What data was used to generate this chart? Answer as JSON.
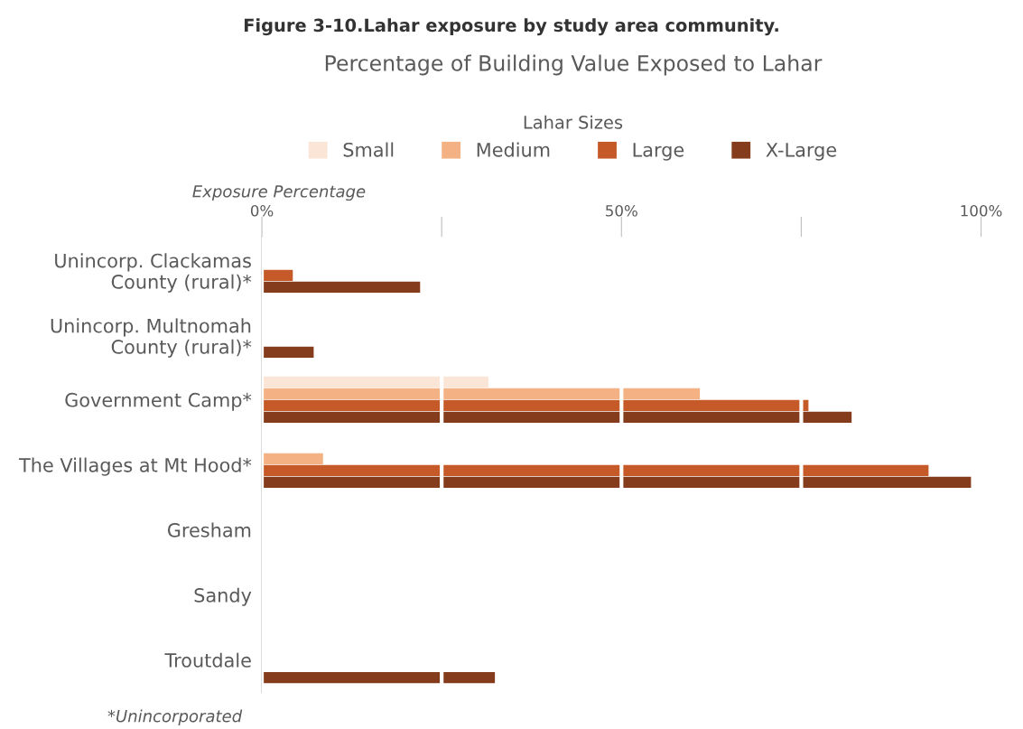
{
  "chart_data": {
    "type": "bar",
    "orientation": "horizontal",
    "title": "Figure 3-10.Lahar exposure by study area community.",
    "subtitle": "Percentage of Building Value Exposed to Lahar",
    "xlabel": "Exposure Percentage",
    "legend_title": "Lahar Sizes",
    "categories": [
      "Unincorp. Clackamas\nCounty (rural)*",
      "Unincorp. Multnomah\nCounty (rural)*",
      "Government Camp*",
      "The Villages at Mt Hood*",
      "Gresham",
      "Sandy",
      "Troutdale"
    ],
    "series": [
      {
        "name": "Small",
        "color": "#fbe5d6",
        "values": [
          0,
          0,
          31.5,
          0,
          0,
          0,
          0
        ]
      },
      {
        "name": "Medium",
        "color": "#f4b183",
        "values": [
          0,
          0,
          60.9,
          8.5,
          0,
          0,
          0
        ]
      },
      {
        "name": "Large",
        "color": "#c55a28",
        "values": [
          4.3,
          0,
          76.0,
          92.7,
          0,
          0,
          0
        ]
      },
      {
        "name": "X-Large",
        "color": "#843c1c",
        "values": [
          22.0,
          7.2,
          82.0,
          98.6,
          0,
          0,
          32.4
        ]
      }
    ],
    "xlim": [
      0,
      100
    ],
    "xticks": [
      {
        "value": 0,
        "label": "0%"
      },
      {
        "value": 25,
        "label": null
      },
      {
        "value": 50,
        "label": "50%"
      },
      {
        "value": 75,
        "label": null
      },
      {
        "value": 100,
        "label": "100%"
      }
    ],
    "grid": "x",
    "legend": "top",
    "annotations": [
      "*Unincorporated"
    ]
  }
}
